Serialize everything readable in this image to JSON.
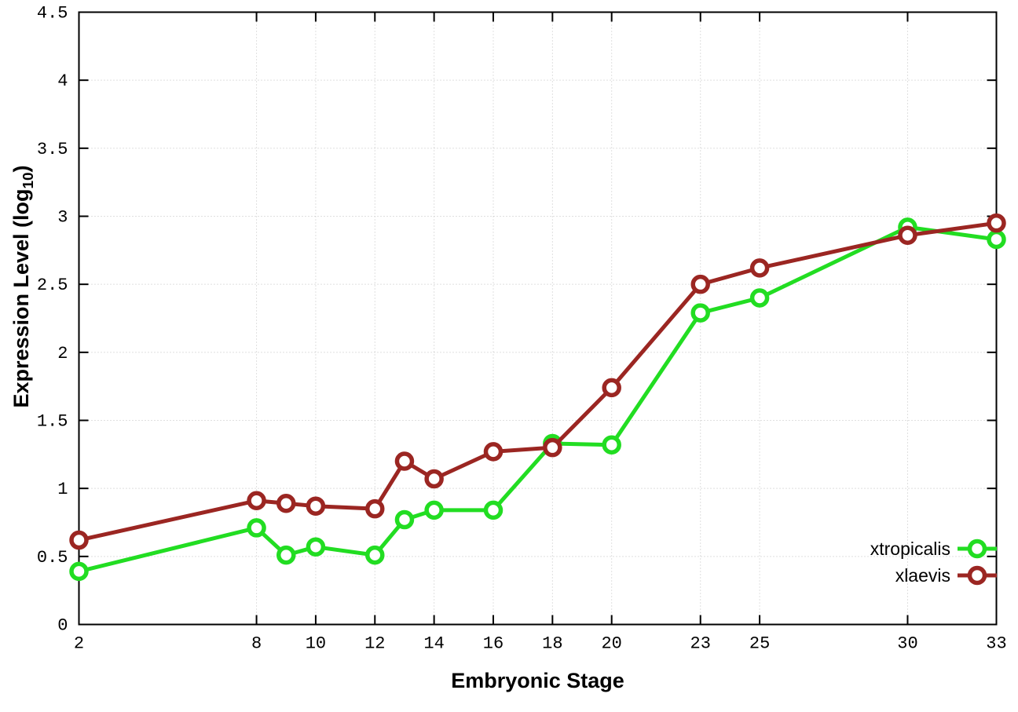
{
  "chart_data": {
    "type": "line",
    "title": "",
    "xlabel": "Embryonic Stage",
    "ylabel": "Expression Level (log10)",
    "ylabel_parts": {
      "base": "Expression Level (log",
      "sub": "10",
      "close": ")"
    },
    "xlim": [
      2,
      33
    ],
    "ylim": [
      0,
      4.5
    ],
    "x_ticks": [
      2,
      8,
      10,
      12,
      14,
      16,
      18,
      20,
      23,
      25,
      30,
      33
    ],
    "x_tick_labels": [
      "2",
      "8",
      "10",
      "12",
      "14",
      "16",
      "18",
      "20",
      "23",
      "25",
      "30",
      "33"
    ],
    "y_ticks": [
      0,
      0.5,
      1,
      1.5,
      2,
      2.5,
      3,
      3.5,
      4,
      4.5
    ],
    "y_tick_labels": [
      "0",
      "0.5",
      "1",
      "1.5",
      "2",
      "2.5",
      "3",
      "3.5",
      "4",
      "4.5"
    ],
    "grid": true,
    "legend_position": "bottom-right-inside",
    "x": [
      2,
      8,
      9,
      10,
      12,
      13,
      14,
      16,
      18,
      20,
      23,
      25,
      30,
      33
    ],
    "series": [
      {
        "name": "xtropicalis",
        "color": "#22dd22",
        "values": [
          0.39,
          0.71,
          0.51,
          0.57,
          0.51,
          0.77,
          0.84,
          0.84,
          1.33,
          1.32,
          2.29,
          2.4,
          2.92,
          2.83
        ]
      },
      {
        "name": "xlaevis",
        "color": "#9b2622",
        "values": [
          0.62,
          0.91,
          0.89,
          0.87,
          0.85,
          1.2,
          1.07,
          1.27,
          1.3,
          1.74,
          2.5,
          2.62,
          2.86,
          2.95
        ]
      }
    ],
    "colors": {
      "border": "#000000",
      "grid": "#c0c0c0",
      "tick_text": "#000000",
      "marker_fill": "#ffffff"
    }
  },
  "legend": {
    "items": [
      {
        "label": "xtropicalis"
      },
      {
        "label": "xlaevis"
      }
    ]
  }
}
